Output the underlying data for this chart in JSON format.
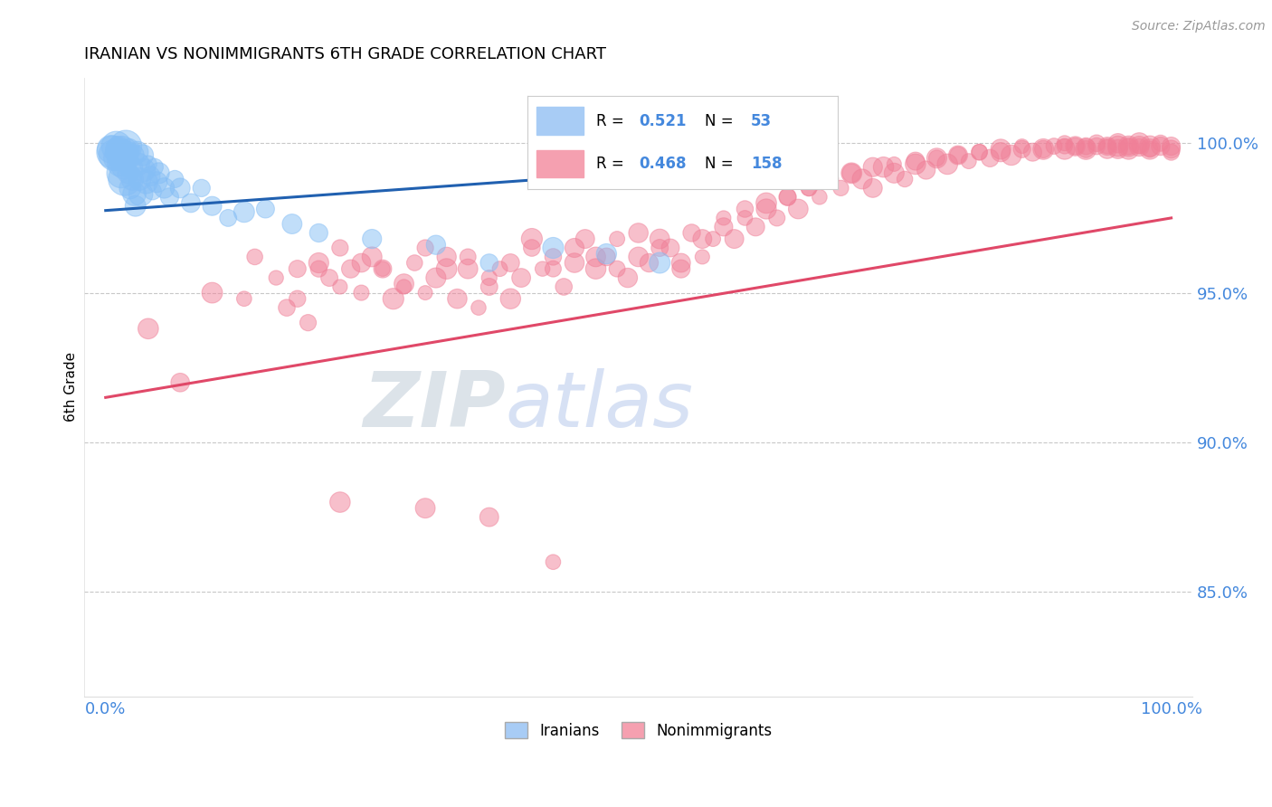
{
  "title": "IRANIAN VS NONIMMIGRANTS 6TH GRADE CORRELATION CHART",
  "source": "Source: ZipAtlas.com",
  "ylabel": "6th Grade",
  "ytick_labels": [
    "85.0%",
    "90.0%",
    "95.0%",
    "100.0%"
  ],
  "ytick_values": [
    0.85,
    0.9,
    0.95,
    1.0
  ],
  "ylim": [
    0.815,
    1.022
  ],
  "xlim": [
    -0.02,
    1.02
  ],
  "iranian_R": 0.521,
  "iranian_N": 53,
  "nonimmigrant_R": 0.468,
  "nonimmigrant_N": 158,
  "iranian_color": "#85bef5",
  "nonimmigrant_color": "#f08098",
  "iranian_line_color": "#2060b0",
  "nonimmigrant_line_color": "#e04868",
  "legend_box_color_iranian": "#a8ccf5",
  "legend_box_color_nonimmigrant": "#f5a0b0",
  "background_color": "#ffffff",
  "grid_color": "#c8c8c8",
  "axis_label_color": "#4488dd",
  "watermark_zip_color": "#c8d8e8",
  "watermark_atlas_color": "#b8cce0",
  "ir_trend_x0": 0.0,
  "ir_trend_y0": 0.9775,
  "ir_trend_x1": 0.55,
  "ir_trend_y1": 0.9915,
  "nonimm_trend_x0": 0.0,
  "nonimm_trend_y0": 0.915,
  "nonimm_trend_x1": 1.0,
  "nonimm_trend_y1": 0.975,
  "iranian_x": [
    0.005,
    0.007,
    0.008,
    0.01,
    0.01,
    0.012,
    0.013,
    0.015,
    0.015,
    0.016,
    0.017,
    0.018,
    0.019,
    0.02,
    0.021,
    0.022,
    0.023,
    0.024,
    0.025,
    0.026,
    0.027,
    0.028,
    0.03,
    0.031,
    0.032,
    0.033,
    0.035,
    0.036,
    0.038,
    0.04,
    0.042,
    0.044,
    0.046,
    0.048,
    0.05,
    0.055,
    0.06,
    0.065,
    0.07,
    0.08,
    0.09,
    0.1,
    0.115,
    0.13,
    0.15,
    0.175,
    0.2,
    0.25,
    0.31,
    0.36,
    0.42,
    0.47,
    0.52
  ],
  "iranian_y": [
    0.998,
    0.997,
    0.996,
    0.999,
    0.995,
    0.998,
    0.993,
    0.997,
    0.99,
    0.996,
    0.992,
    0.988,
    0.999,
    0.994,
    0.99,
    0.998,
    0.985,
    0.992,
    0.988,
    0.996,
    0.983,
    0.979,
    0.997,
    0.993,
    0.988,
    0.983,
    0.996,
    0.991,
    0.987,
    0.993,
    0.989,
    0.984,
    0.992,
    0.987,
    0.99,
    0.985,
    0.982,
    0.988,
    0.985,
    0.98,
    0.985,
    0.979,
    0.975,
    0.977,
    0.978,
    0.973,
    0.97,
    0.968,
    0.966,
    0.96,
    0.965,
    0.963,
    0.96
  ],
  "iranian_sizes": [
    300,
    200,
    220,
    250,
    280,
    200,
    240,
    220,
    260,
    200,
    230,
    210,
    200,
    240,
    220,
    200,
    210,
    230,
    210,
    200,
    210,
    220,
    200,
    210,
    200,
    220,
    210,
    200,
    210,
    220,
    200,
    210,
    200,
    210,
    200,
    210,
    200,
    210,
    200,
    210,
    200,
    210,
    200,
    210,
    200,
    210,
    200,
    210,
    200,
    210,
    200,
    210,
    200
  ],
  "nonimmigrant_x": [
    0.04,
    0.07,
    0.1,
    0.13,
    0.14,
    0.16,
    0.17,
    0.18,
    0.19,
    0.2,
    0.21,
    0.22,
    0.23,
    0.24,
    0.25,
    0.26,
    0.27,
    0.28,
    0.29,
    0.3,
    0.31,
    0.32,
    0.33,
    0.34,
    0.35,
    0.36,
    0.37,
    0.38,
    0.39,
    0.4,
    0.41,
    0.42,
    0.43,
    0.44,
    0.45,
    0.46,
    0.47,
    0.48,
    0.49,
    0.5,
    0.51,
    0.52,
    0.53,
    0.54,
    0.55,
    0.56,
    0.57,
    0.58,
    0.59,
    0.6,
    0.61,
    0.62,
    0.63,
    0.64,
    0.65,
    0.66,
    0.67,
    0.68,
    0.69,
    0.7,
    0.71,
    0.72,
    0.73,
    0.74,
    0.75,
    0.76,
    0.77,
    0.78,
    0.79,
    0.8,
    0.81,
    0.82,
    0.83,
    0.84,
    0.85,
    0.86,
    0.87,
    0.88,
    0.89,
    0.9,
    0.91,
    0.92,
    0.93,
    0.94,
    0.95,
    0.96,
    0.97,
    0.98,
    0.99,
    1.0,
    0.18,
    0.2,
    0.22,
    0.24,
    0.26,
    0.28,
    0.3,
    0.32,
    0.34,
    0.36,
    0.38,
    0.4,
    0.42,
    0.44,
    0.46,
    0.48,
    0.5,
    0.52,
    0.54,
    0.56,
    0.58,
    0.6,
    0.62,
    0.64,
    0.66,
    0.68,
    0.7,
    0.72,
    0.74,
    0.76,
    0.78,
    0.8,
    0.82,
    0.84,
    0.86,
    0.88,
    0.9,
    0.92,
    0.94,
    0.96,
    0.98,
    1.0,
    0.95,
    0.97,
    0.99,
    1.0,
    0.98,
    0.97,
    0.96,
    0.95,
    0.94,
    0.93,
    0.92,
    0.91,
    0.9,
    0.22,
    0.3,
    0.36,
    0.42
  ],
  "nonimmigrant_y": [
    0.938,
    0.92,
    0.95,
    0.948,
    0.962,
    0.955,
    0.945,
    0.958,
    0.94,
    0.96,
    0.955,
    0.965,
    0.958,
    0.95,
    0.962,
    0.958,
    0.948,
    0.953,
    0.96,
    0.95,
    0.955,
    0.962,
    0.948,
    0.958,
    0.945,
    0.952,
    0.958,
    0.948,
    0.955,
    0.965,
    0.958,
    0.962,
    0.952,
    0.96,
    0.968,
    0.958,
    0.962,
    0.968,
    0.955,
    0.962,
    0.96,
    0.968,
    0.965,
    0.958,
    0.97,
    0.962,
    0.968,
    0.975,
    0.968,
    0.978,
    0.972,
    0.98,
    0.975,
    0.982,
    0.978,
    0.985,
    0.982,
    0.988,
    0.985,
    0.99,
    0.988,
    0.985,
    0.992,
    0.99,
    0.988,
    0.993,
    0.991,
    0.995,
    0.993,
    0.996,
    0.994,
    0.997,
    0.995,
    0.998,
    0.996,
    0.999,
    0.997,
    0.998,
    0.999,
    1.0,
    0.999,
    0.998,
    1.0,
    0.999,
    1.0,
    0.999,
    1.0,
    0.999,
    1.0,
    0.998,
    0.948,
    0.958,
    0.952,
    0.96,
    0.958,
    0.952,
    0.965,
    0.958,
    0.962,
    0.955,
    0.96,
    0.968,
    0.958,
    0.965,
    0.962,
    0.958,
    0.97,
    0.965,
    0.96,
    0.968,
    0.972,
    0.975,
    0.978,
    0.982,
    0.985,
    0.988,
    0.99,
    0.992,
    0.993,
    0.994,
    0.995,
    0.996,
    0.997,
    0.997,
    0.998,
    0.998,
    0.999,
    0.999,
    0.999,
    0.999,
    0.998,
    0.997,
    0.998,
    0.999,
    0.999,
    0.999,
    0.998,
    0.999,
    0.998,
    0.999,
    0.998,
    0.999,
    0.998,
    0.999,
    0.998,
    0.88,
    0.878,
    0.875,
    0.86
  ]
}
